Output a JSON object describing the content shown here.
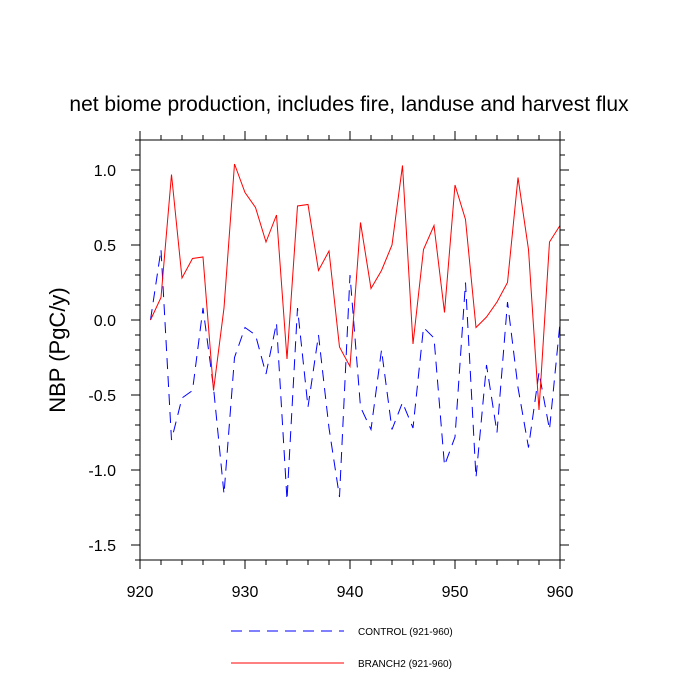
{
  "chart_data": {
    "type": "line",
    "title": "net biome production, includes fire, landuse and harvest flux",
    "xlabel": "",
    "ylabel": "NBP  (PgC/y)",
    "xlim": [
      920,
      960
    ],
    "ylim": [
      -1.6,
      1.2
    ],
    "x_ticks": [
      920,
      930,
      940,
      950,
      960
    ],
    "x_tick_labels": [
      "920",
      "930",
      "940",
      "950",
      "960"
    ],
    "y_ticks": [
      1.0,
      0.5,
      0.0,
      -0.5,
      -1.0,
      -1.5
    ],
    "y_tick_labels": [
      "1.0",
      "0.5",
      "0.0",
      "-0.5",
      "-1.0",
      "-1.5"
    ],
    "grid": false,
    "legend_position": "bottom",
    "x": [
      921,
      922,
      923,
      924,
      925,
      926,
      927,
      928,
      929,
      930,
      931,
      932,
      933,
      934,
      935,
      936,
      937,
      938,
      939,
      940,
      941,
      942,
      943,
      944,
      945,
      946,
      947,
      948,
      949,
      950,
      951,
      952,
      953,
      954,
      955,
      956,
      957,
      958,
      959,
      960
    ],
    "series": [
      {
        "name": "CONTROL (921-960)",
        "color": "#0000ff",
        "dash": "dashed",
        "values": [
          0.0,
          0.47,
          -0.8,
          -0.52,
          -0.47,
          0.08,
          -0.45,
          -1.16,
          -0.25,
          -0.05,
          -0.1,
          -0.36,
          -0.02,
          -1.2,
          0.08,
          -0.58,
          -0.1,
          -0.72,
          -1.18,
          0.3,
          -0.58,
          -0.73,
          -0.2,
          -0.73,
          -0.55,
          -0.72,
          -0.05,
          -0.12,
          -0.97,
          -0.78,
          0.25,
          -1.05,
          -0.3,
          -0.75,
          0.12,
          -0.45,
          -0.85,
          -0.35,
          -0.73,
          -0.02
        ]
      },
      {
        "name": "BRANCH2 (921-960)",
        "color": "#ff0000",
        "dash": "solid",
        "values": [
          0.0,
          0.15,
          0.97,
          0.28,
          0.41,
          0.42,
          -0.47,
          0.08,
          1.04,
          0.85,
          0.75,
          0.52,
          0.7,
          -0.26,
          0.76,
          0.77,
          0.33,
          0.46,
          -0.18,
          -0.31,
          0.65,
          0.21,
          0.33,
          0.5,
          1.03,
          -0.16,
          0.47,
          0.63,
          0.05,
          0.9,
          0.67,
          -0.05,
          0.02,
          0.12,
          0.25,
          0.95,
          0.47,
          -0.6,
          0.52,
          0.63
        ]
      }
    ]
  }
}
